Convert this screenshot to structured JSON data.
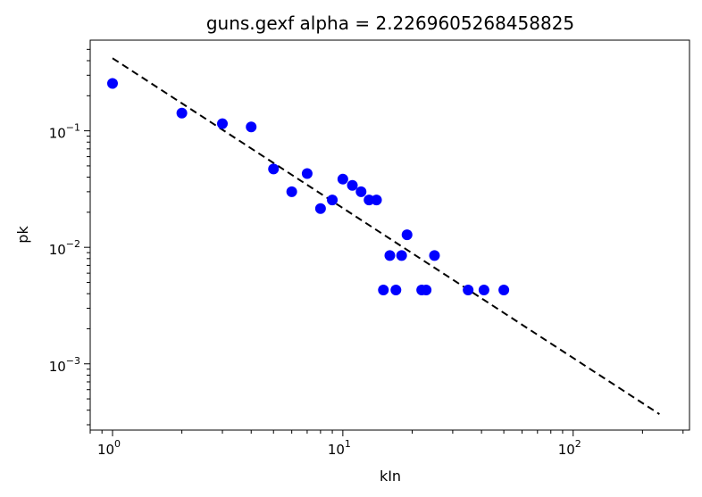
{
  "chart_data": {
    "type": "scatter",
    "title": "guns.gexf alpha = 2.2269605268458825",
    "xlabel": "kIn",
    "ylabel": "pk",
    "xscale": "log",
    "yscale": "log",
    "xlim": [
      0.8,
      320
    ],
    "ylim": [
      0.00027,
      0.6
    ],
    "x_major_ticks": [
      {
        "value": 1,
        "base": "10",
        "exp": "0"
      },
      {
        "value": 10,
        "base": "10",
        "exp": "1"
      },
      {
        "value": 100,
        "base": "10",
        "exp": "2"
      }
    ],
    "y_major_ticks": [
      {
        "value": 0.001,
        "base": "10",
        "exp": "−3"
      },
      {
        "value": 0.01,
        "base": "10",
        "exp": "−2"
      },
      {
        "value": 0.1,
        "base": "10",
        "exp": "−1"
      }
    ],
    "grid": false,
    "points": {
      "color": "#0000ff",
      "x": [
        1,
        2,
        3,
        4,
        5,
        6,
        7,
        8,
        9,
        10,
        11,
        12,
        13,
        14,
        15,
        16,
        17,
        18,
        19,
        22,
        23,
        25,
        35,
        41,
        50
      ],
      "y": [
        0.255,
        0.142,
        0.115,
        0.108,
        0.047,
        0.03,
        0.043,
        0.0215,
        0.0255,
        0.0385,
        0.034,
        0.03,
        0.0255,
        0.0255,
        0.0043,
        0.0085,
        0.0043,
        0.0085,
        0.0128,
        0.0043,
        0.0043,
        0.0085,
        0.0043,
        0.0043,
        0.0043
      ]
    },
    "fit_line": {
      "style": "dashed",
      "color": "#000000",
      "x": [
        1,
        237
      ],
      "y": [
        0.42,
        0.00037
      ]
    }
  }
}
